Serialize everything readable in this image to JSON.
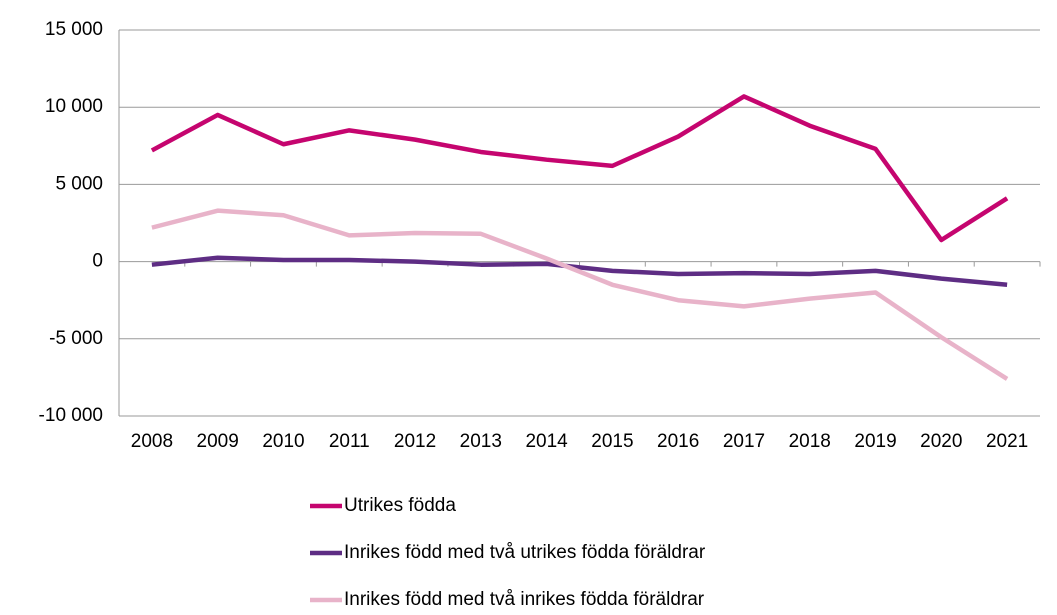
{
  "chart_data": {
    "type": "line",
    "categories": [
      "2008",
      "2009",
      "2010",
      "2011",
      "2012",
      "2013",
      "2014",
      "2015",
      "2016",
      "2017",
      "2018",
      "2019",
      "2020",
      "2021"
    ],
    "series": [
      {
        "name": "Utrikes födda",
        "color": "#c5056f",
        "values": [
          7200,
          9500,
          7600,
          8500,
          7900,
          7100,
          6600,
          6200,
          8100,
          10700,
          8800,
          7300,
          1400,
          4100
        ]
      },
      {
        "name": "Inrikes född med två utrikes födda föräldrar",
        "color": "#5e2d84",
        "values": [
          -200,
          250,
          100,
          100,
          0,
          -200,
          -150,
          -600,
          -800,
          -750,
          -800,
          -600,
          -1100,
          -1500
        ]
      },
      {
        "name": "Inrikes född med två inrikes födda föräldrar",
        "color": "#e8b3c9",
        "values": [
          2200,
          3300,
          3000,
          1700,
          1850,
          1800,
          200,
          -1500,
          -2500,
          -2900,
          -2400,
          -2000,
          -4900,
          -7600
        ]
      }
    ],
    "ylim": [
      -10000,
      15000
    ],
    "yticks": [
      {
        "value": -10000,
        "label": "-10 000"
      },
      {
        "value": -5000,
        "label": "-5 000"
      },
      0,
      {
        "value": 5000,
        "label": "5 000"
      },
      {
        "value": 10000,
        "label": "10 000"
      },
      {
        "value": 15000,
        "label": "15 000"
      }
    ],
    "grid": true,
    "legend": "bottom"
  }
}
